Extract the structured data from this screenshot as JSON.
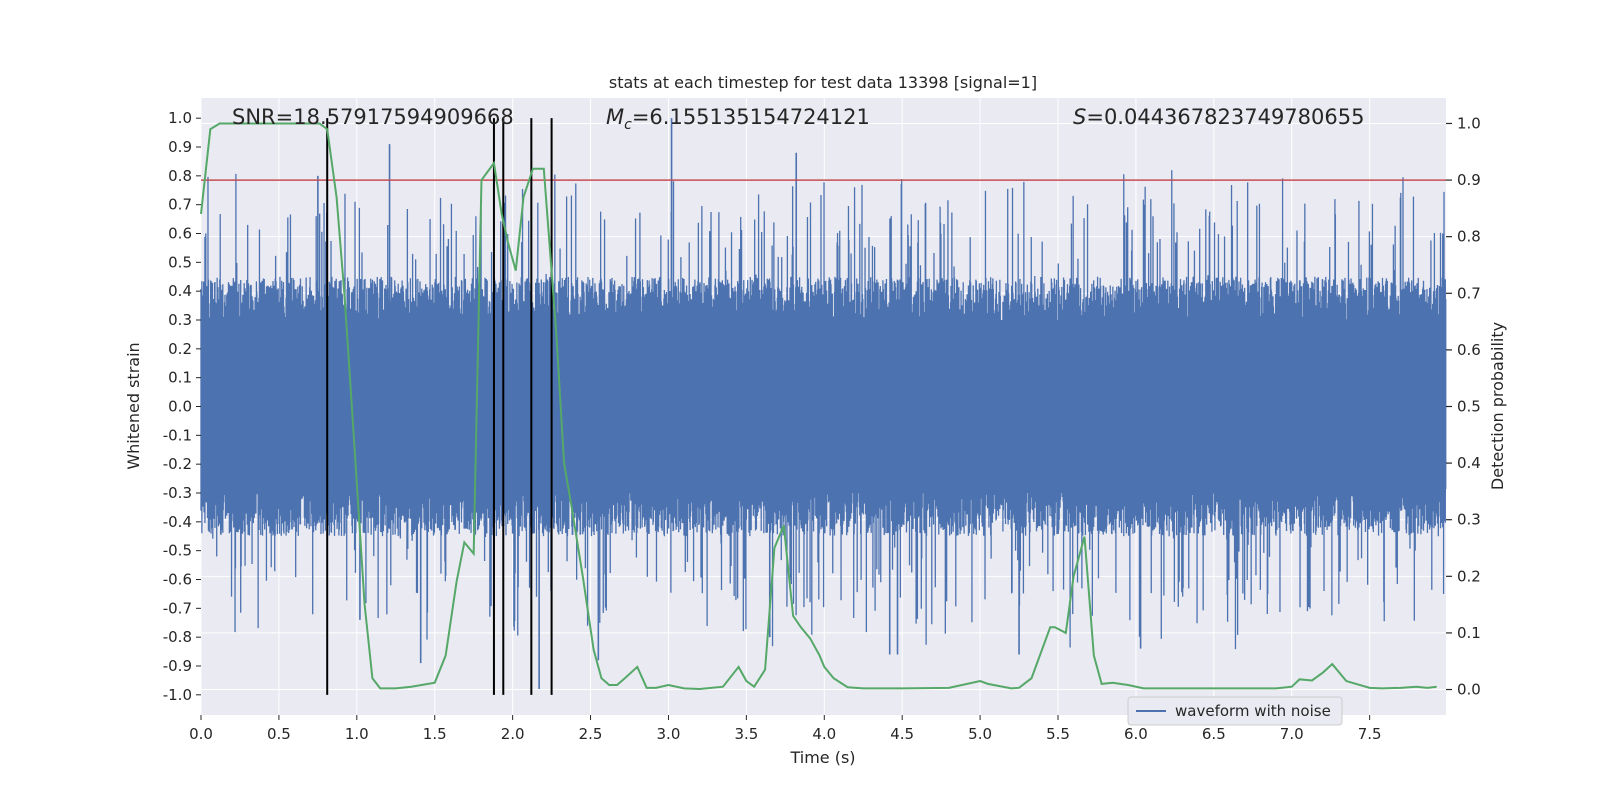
{
  "chart_data": {
    "type": "line",
    "title": "stats at each timestep for test data 13398 [signal=1]",
    "xlabel": "Time (s)",
    "ylabel": "Whitened strain",
    "y2label": "Detection probability",
    "xlim": [
      0.0,
      7.99
    ],
    "ylim": [
      -1.07,
      1.07
    ],
    "y2lim": [
      -0.045,
      1.045
    ],
    "x_ticks": [
      0.0,
      0.5,
      1.0,
      1.5,
      2.0,
      2.5,
      3.0,
      3.5,
      4.0,
      4.5,
      5.0,
      5.5,
      6.0,
      6.5,
      7.0,
      7.5
    ],
    "x_tick_labels": [
      "0.0",
      "0.5",
      "1.0",
      "1.5",
      "2.0",
      "2.5",
      "3.0",
      "3.5",
      "4.0",
      "4.5",
      "5.0",
      "5.5",
      "6.0",
      "6.5",
      "7.0",
      "7.5"
    ],
    "y_ticks": [
      -1.0,
      -0.9,
      -0.8,
      -0.7,
      -0.6,
      -0.5,
      -0.4,
      -0.3,
      -0.2,
      -0.1,
      0.0,
      0.1,
      0.2,
      0.3,
      0.4,
      0.5,
      0.6,
      0.7,
      0.8,
      0.9,
      1.0
    ],
    "y_tick_labels": [
      "-1.0",
      "-0.9",
      "-0.8",
      "-0.7",
      "-0.6",
      "-0.5",
      "-0.4",
      "-0.3",
      "-0.2",
      "-0.1",
      "0.0",
      "0.1",
      "0.2",
      "0.3",
      "0.4",
      "0.5",
      "0.6",
      "0.7",
      "0.8",
      "0.9",
      "1.0"
    ],
    "y2_ticks": [
      0.0,
      0.1,
      0.2,
      0.3,
      0.4,
      0.5,
      0.6,
      0.7,
      0.8,
      0.9,
      1.0
    ],
    "y2_tick_labels": [
      "0.0",
      "0.1",
      "0.2",
      "0.3",
      "0.4",
      "0.5",
      "0.6",
      "0.7",
      "0.8",
      "0.9",
      "1.0"
    ],
    "threshold": 0.9,
    "threshold_color": "#c44e52",
    "event_markers_x": [
      0.81,
      1.88,
      1.94,
      2.12,
      2.25
    ],
    "event_marker_color": "#000000",
    "annotations": {
      "snr": "SNR=18.57917594909668",
      "mc_symbol": "M",
      "mc_sub": "c",
      "mc_value": "=6.155135154724121",
      "s_symbol": "S",
      "s_value": "=0.044367823749780655"
    },
    "legend": {
      "label": "waveform with noise",
      "position": "bottom-right"
    },
    "series": [
      {
        "name": "waveform with noise",
        "axis": "left",
        "color": "#4c72b0",
        "description": "dense whitened strain noise, mostly within ±0.45 with spikes up to about ±1.0",
        "typical_peak": 0.45,
        "spikes": [
          {
            "x": 0.75,
            "y": 0.8
          },
          {
            "x": 0.81,
            "y": 0.95
          },
          {
            "x": 1.21,
            "y": 0.91
          },
          {
            "x": 2.12,
            "y": 0.88
          },
          {
            "x": 3.02,
            "y": 1.0
          },
          {
            "x": 3.82,
            "y": 0.88
          },
          {
            "x": 1.41,
            "y": -0.89
          },
          {
            "x": 2.17,
            "y": -0.98
          },
          {
            "x": 2.55,
            "y": -0.88
          },
          {
            "x": 4.42,
            "y": -0.86
          },
          {
            "x": 4.47,
            "y": -0.86
          },
          {
            "x": 5.25,
            "y": -0.86
          },
          {
            "x": 6.03,
            "y": -0.84
          },
          {
            "x": 1.02,
            "y": -0.74
          },
          {
            "x": 3.65,
            "y": -0.8
          }
        ]
      },
      {
        "name": "detection probability",
        "axis": "right",
        "color": "#55a868",
        "x": [
          0.0,
          0.06,
          0.12,
          0.2,
          0.3,
          0.4,
          0.5,
          0.6,
          0.7,
          0.76,
          0.81,
          0.87,
          0.92,
          0.98,
          1.05,
          1.1,
          1.15,
          1.25,
          1.35,
          1.5,
          1.57,
          1.64,
          1.69,
          1.75,
          1.8,
          1.88,
          1.93,
          1.97,
          2.02,
          2.07,
          2.13,
          2.2,
          2.28,
          2.33,
          2.38,
          2.45,
          2.52,
          2.57,
          2.62,
          2.67,
          2.72,
          2.8,
          2.86,
          2.92,
          3.0,
          3.1,
          3.2,
          3.35,
          3.45,
          3.5,
          3.55,
          3.62,
          3.68,
          3.74,
          3.8,
          3.85,
          3.91,
          3.97,
          4.0,
          4.06,
          4.15,
          4.25,
          4.5,
          4.8,
          5.0,
          5.05,
          5.2,
          5.25,
          5.33,
          5.45,
          5.48,
          5.55,
          5.6,
          5.67,
          5.73,
          5.78,
          5.85,
          5.95,
          6.05,
          6.3,
          6.5,
          6.9,
          7.0,
          7.05,
          7.13,
          7.2,
          7.26,
          7.35,
          7.5,
          7.58,
          7.7,
          7.8,
          7.87,
          7.93
        ],
        "y": [
          0.84,
          0.99,
          1.0,
          1.0,
          1.0,
          1.0,
          1.0,
          1.0,
          1.0,
          1.0,
          0.99,
          0.87,
          0.7,
          0.45,
          0.15,
          0.02,
          0.002,
          0.002,
          0.005,
          0.012,
          0.06,
          0.19,
          0.26,
          0.24,
          0.9,
          0.93,
          0.84,
          0.79,
          0.74,
          0.87,
          0.92,
          0.92,
          0.63,
          0.4,
          0.32,
          0.2,
          0.07,
          0.02,
          0.008,
          0.008,
          0.02,
          0.04,
          0.003,
          0.003,
          0.008,
          0.002,
          0.001,
          0.005,
          0.04,
          0.015,
          0.005,
          0.035,
          0.25,
          0.29,
          0.13,
          0.11,
          0.09,
          0.06,
          0.04,
          0.02,
          0.004,
          0.002,
          0.002,
          0.003,
          0.015,
          0.01,
          0.002,
          0.003,
          0.02,
          0.11,
          0.11,
          0.1,
          0.2,
          0.27,
          0.06,
          0.01,
          0.012,
          0.008,
          0.002,
          0.002,
          0.002,
          0.002,
          0.005,
          0.018,
          0.016,
          0.03,
          0.045,
          0.015,
          0.003,
          0.002,
          0.003,
          0.005,
          0.003,
          0.005
        ]
      }
    ]
  }
}
